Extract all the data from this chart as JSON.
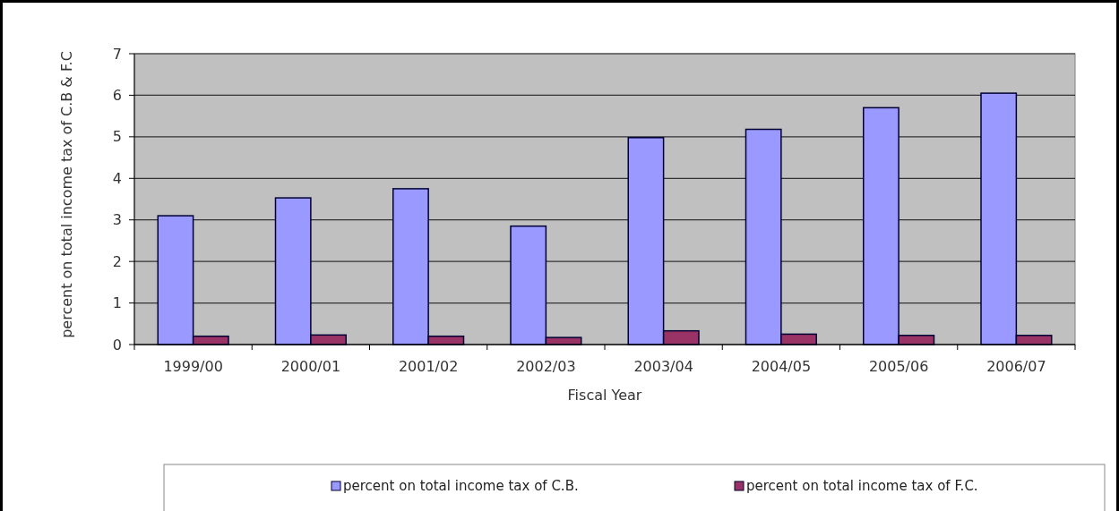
{
  "chart_data": {
    "type": "bar",
    "xlabel": "Fiscal Year",
    "ylabel": "percent on total income tax of C.B & F.C",
    "categories": [
      "1999/00",
      "2000/01",
      "2001/02",
      "2002/03",
      "2003/04",
      "2004/05",
      "2005/06",
      "2006/07"
    ],
    "series": [
      {
        "name": "percent on total income tax of C.B.",
        "color": "#9999ff",
        "values": [
          3.1,
          3.53,
          3.75,
          2.85,
          4.98,
          5.18,
          5.7,
          6.05
        ]
      },
      {
        "name": "percent on total income tax of F.C.",
        "color": "#993366",
        "values": [
          0.2,
          0.23,
          0.2,
          0.17,
          0.33,
          0.25,
          0.22,
          0.22
        ]
      }
    ],
    "ylim": [
      0,
      7
    ],
    "yticks": [
      0,
      1,
      2,
      3,
      4,
      5,
      6,
      7
    ],
    "grid": "y",
    "legend": "bottom"
  }
}
